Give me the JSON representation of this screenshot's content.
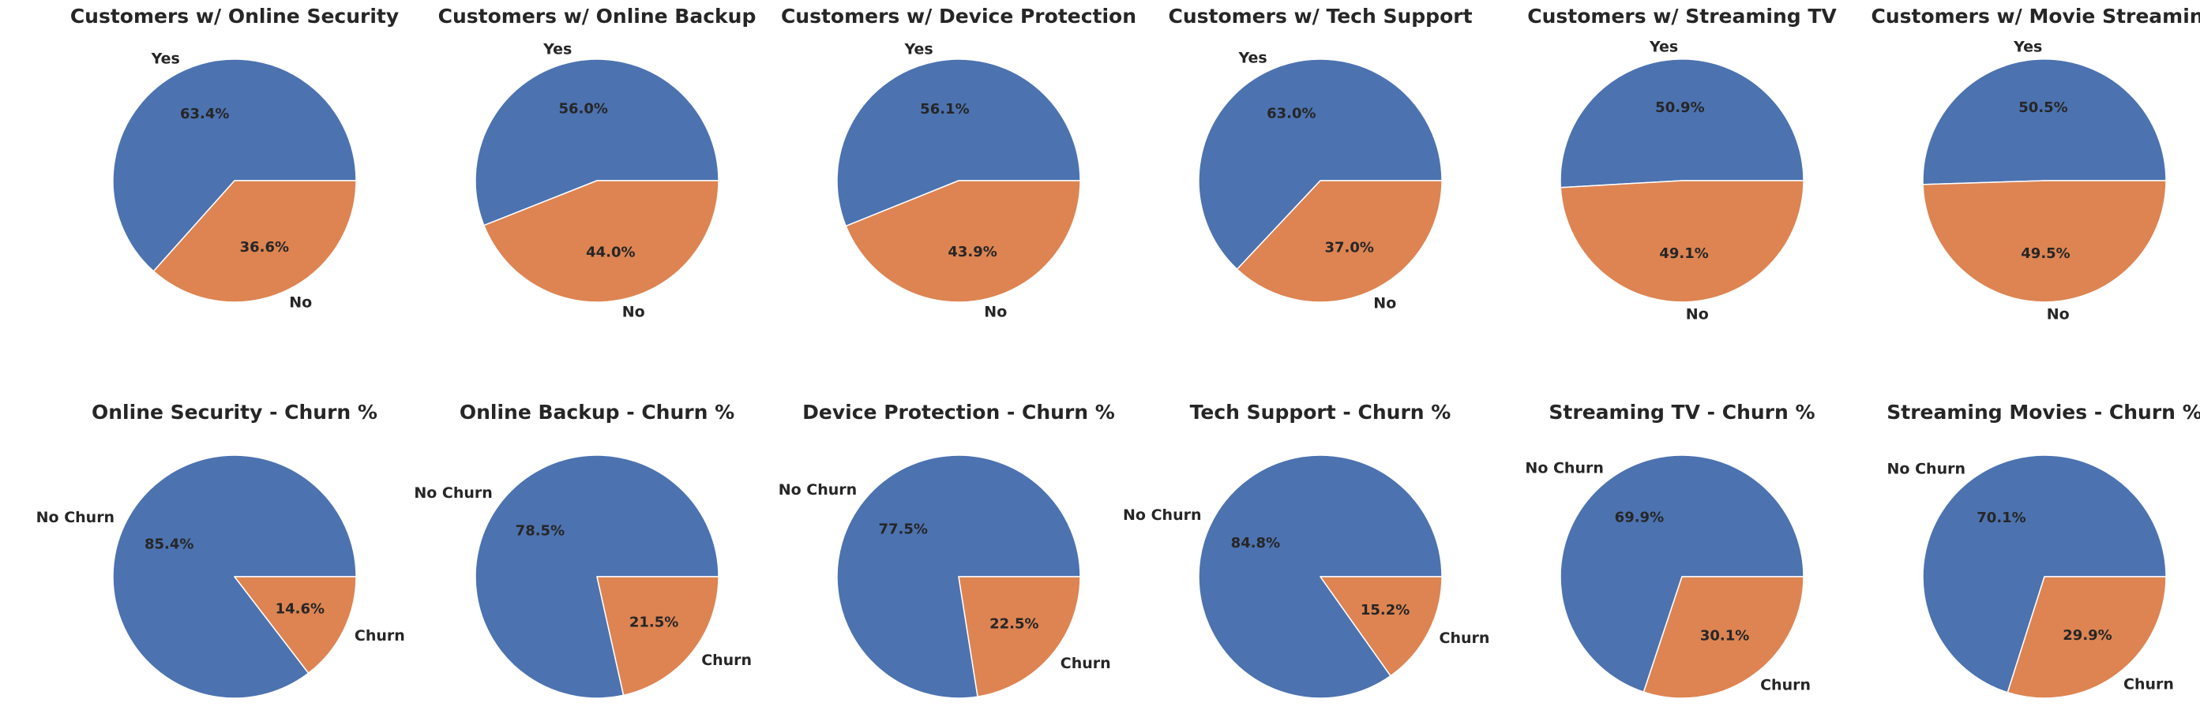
{
  "chart_data": [
    {
      "type": "pie",
      "title": "Customers w/ Online Security",
      "labels": [
        "Yes",
        "No"
      ],
      "values": [
        63.4,
        36.6
      ],
      "value_labels": [
        "63.4%",
        "36.6%"
      ]
    },
    {
      "type": "pie",
      "title": "Customers w/ Online Backup",
      "labels": [
        "Yes",
        "No"
      ],
      "values": [
        56.0,
        44.0
      ],
      "value_labels": [
        "56.0%",
        "44.0%"
      ]
    },
    {
      "type": "pie",
      "title": "Customers w/ Device Protection",
      "labels": [
        "Yes",
        "No"
      ],
      "values": [
        56.1,
        43.9
      ],
      "value_labels": [
        "56.1%",
        "43.9%"
      ]
    },
    {
      "type": "pie",
      "title": "Customers w/ Tech Support",
      "labels": [
        "Yes",
        "No"
      ],
      "values": [
        63.0,
        37.0
      ],
      "value_labels": [
        "63.0%",
        "37.0%"
      ]
    },
    {
      "type": "pie",
      "title": "Customers w/ Streaming TV",
      "labels": [
        "Yes",
        "No"
      ],
      "values": [
        50.9,
        49.1
      ],
      "value_labels": [
        "50.9%",
        "49.1%"
      ]
    },
    {
      "type": "pie",
      "title": "Customers w/ Movie Streaming",
      "labels": [
        "Yes",
        "No"
      ],
      "values": [
        50.5,
        49.5
      ],
      "value_labels": [
        "50.5%",
        "49.5%"
      ]
    },
    {
      "type": "pie",
      "title": "Online Security - Churn %",
      "labels": [
        "No Churn",
        "Churn"
      ],
      "values": [
        85.4,
        14.6
      ],
      "value_labels": [
        "85.4%",
        "14.6%"
      ]
    },
    {
      "type": "pie",
      "title": "Online Backup - Churn %",
      "labels": [
        "No Churn",
        "Churn"
      ],
      "values": [
        78.5,
        21.5
      ],
      "value_labels": [
        "78.5%",
        "21.5%"
      ]
    },
    {
      "type": "pie",
      "title": "Device Protection - Churn %",
      "labels": [
        "No Churn",
        "Churn"
      ],
      "values": [
        77.5,
        22.5
      ],
      "value_labels": [
        "77.5%",
        "22.5%"
      ]
    },
    {
      "type": "pie",
      "title": "Tech Support - Churn %",
      "labels": [
        "No Churn",
        "Churn"
      ],
      "values": [
        84.8,
        15.2
      ],
      "value_labels": [
        "84.8%",
        "15.2%"
      ]
    },
    {
      "type": "pie",
      "title": "Streaming TV - Churn %",
      "labels": [
        "No Churn",
        "Churn"
      ],
      "values": [
        69.9,
        30.1
      ],
      "value_labels": [
        "69.9%",
        "30.1%"
      ]
    },
    {
      "type": "pie",
      "title": "Streaming Movies - Churn %",
      "labels": [
        "No Churn",
        "Churn"
      ],
      "values": [
        70.1,
        29.9
      ],
      "value_labels": [
        "70.1%",
        "29.9%"
      ]
    }
  ],
  "colors": [
    "#4c72b0",
    "#dd8452"
  ]
}
